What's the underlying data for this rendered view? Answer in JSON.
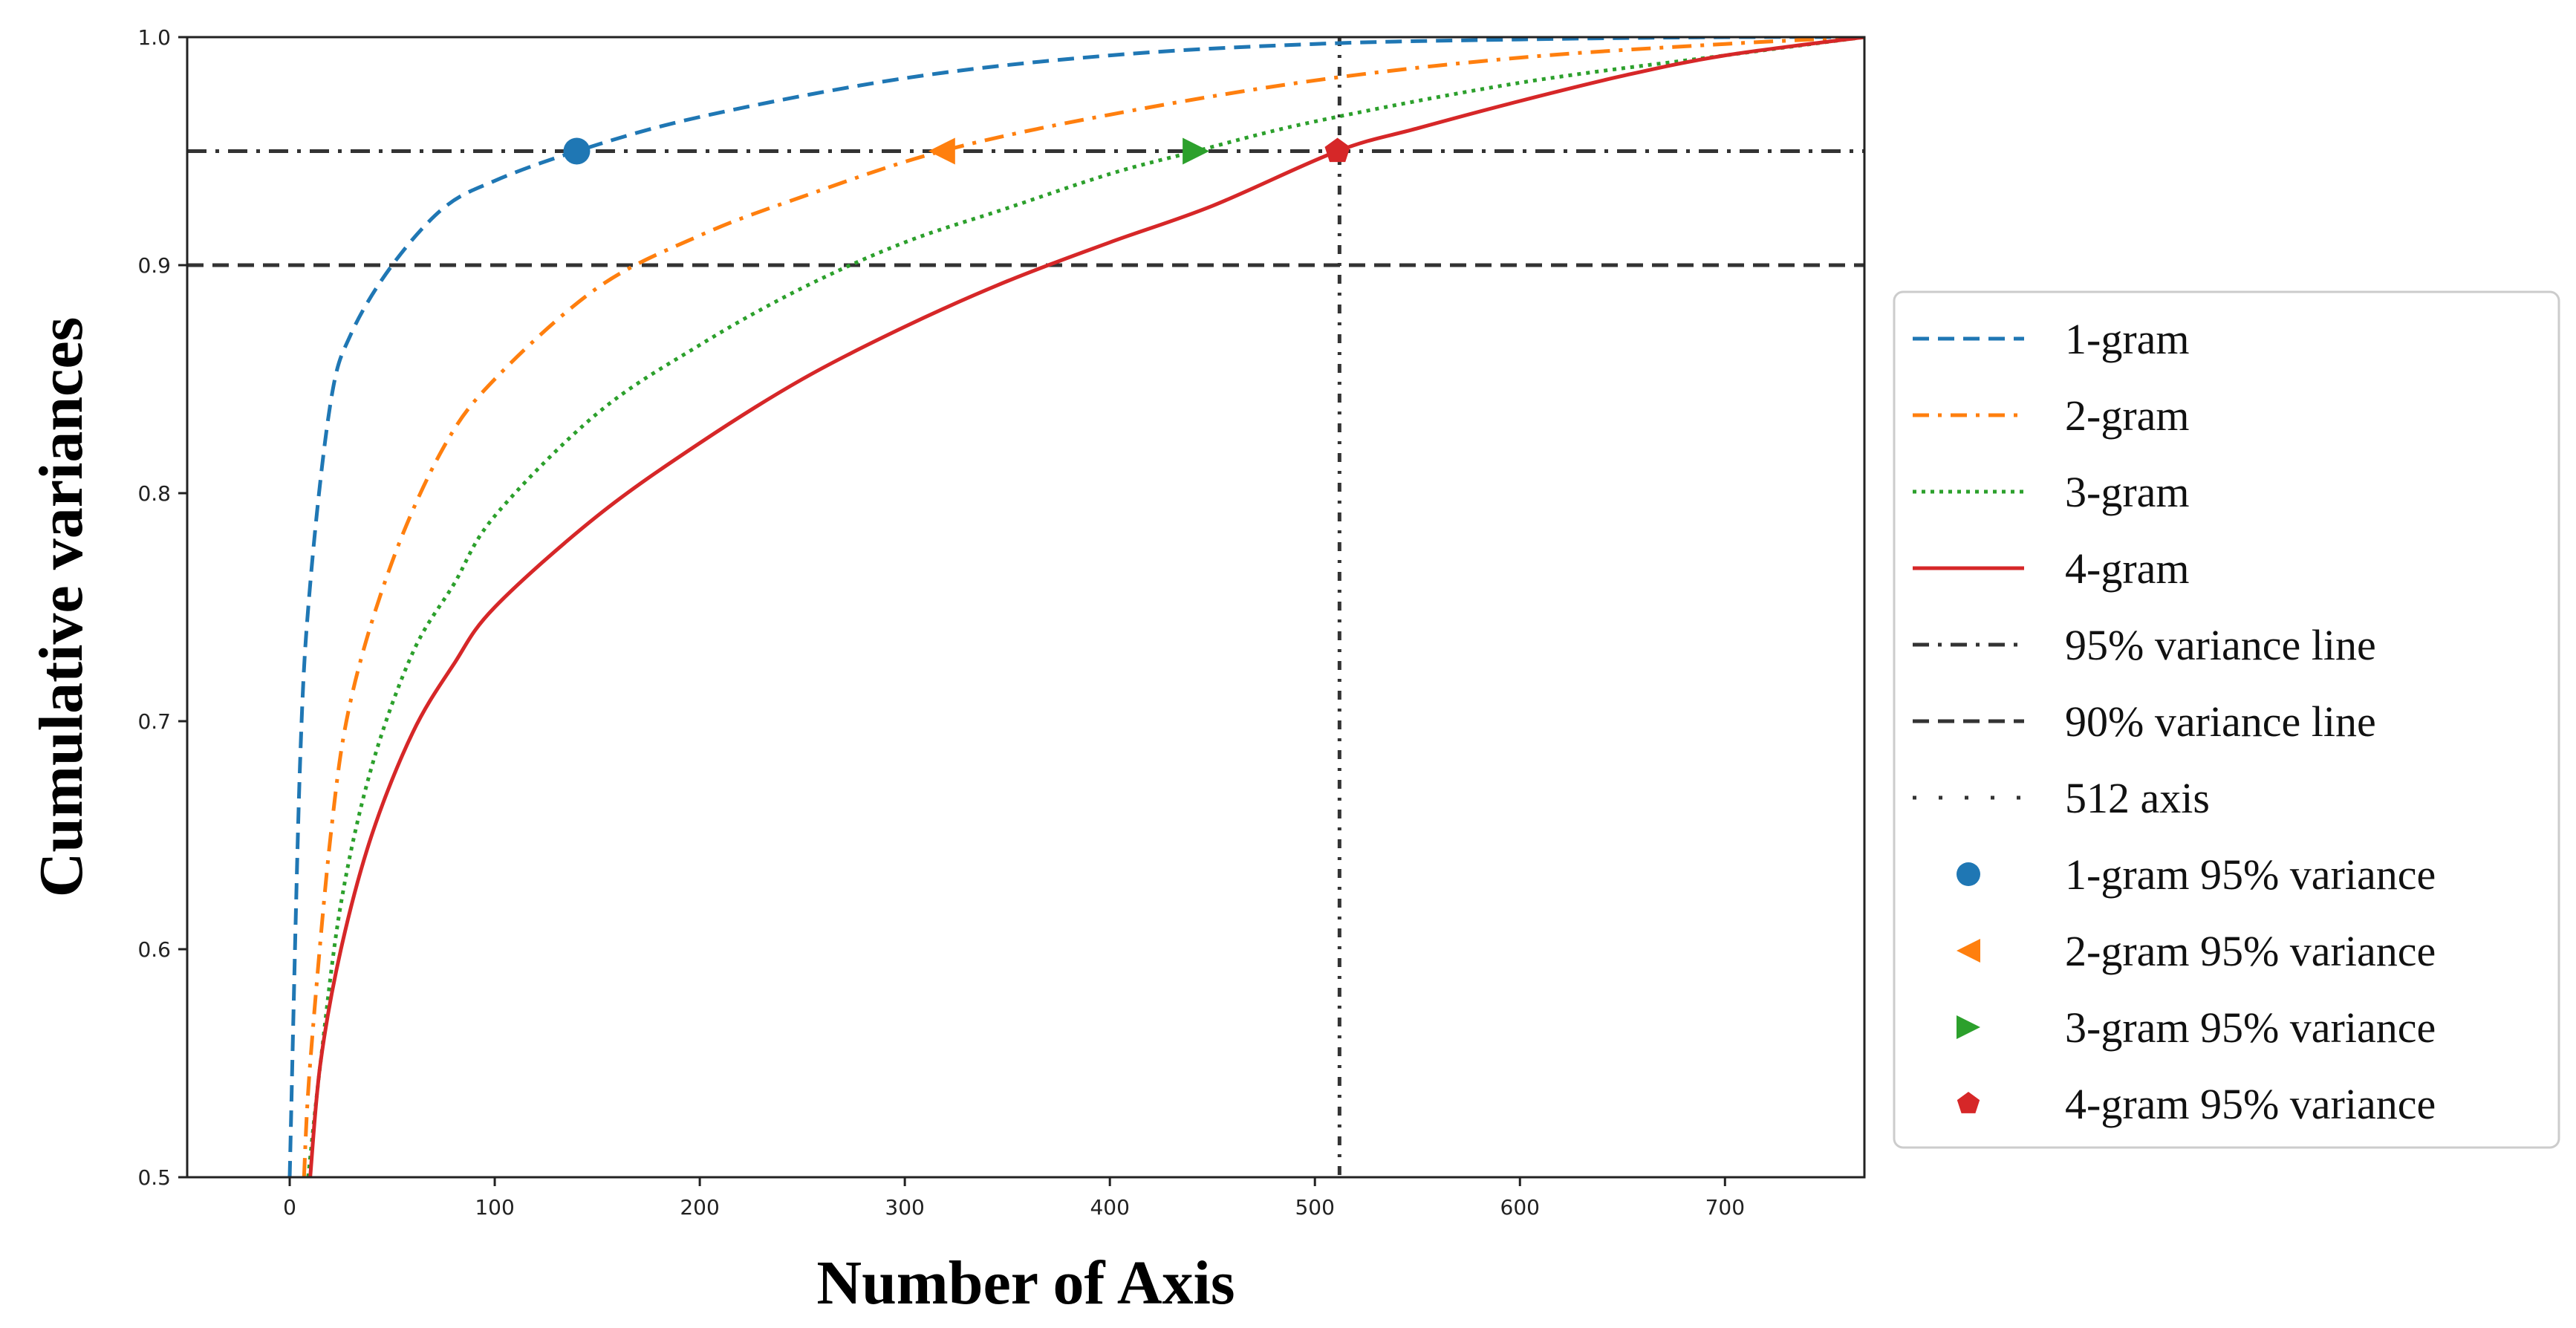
{
  "chart_data": {
    "type": "line",
    "title": "",
    "xlabel": "Number of Axis",
    "ylabel": "Cumulative variances",
    "xlim": [
      -50,
      768
    ],
    "ylim": [
      0.5,
      1.0
    ],
    "xticks": [
      0,
      100,
      200,
      300,
      400,
      500,
      600,
      700
    ],
    "yticks": [
      0.5,
      0.6,
      0.7,
      0.8,
      0.9,
      1.0
    ],
    "xtick_labels": [
      "0",
      "100",
      "200",
      "300",
      "400",
      "500",
      "600",
      "700"
    ],
    "ytick_labels": [
      "0.5",
      "0.6",
      "0.7",
      "0.8",
      "0.9",
      "1.0"
    ],
    "grid": false,
    "legend_position": "outside-right",
    "series": [
      {
        "name": "1-gram",
        "color": "#1f77b4",
        "dash": "dashed",
        "x": [
          0,
          5,
          10,
          20,
          30,
          50,
          75,
          100,
          140,
          200,
          300,
          400,
          500,
          600,
          700,
          768
        ],
        "y": [
          0.5,
          0.68,
          0.76,
          0.84,
          0.87,
          0.9,
          0.925,
          0.937,
          0.95,
          0.965,
          0.982,
          0.992,
          0.997,
          0.999,
          1.0,
          1.0
        ]
      },
      {
        "name": "2-gram",
        "color": "#ff7f0e",
        "dash": "dashdot",
        "x": [
          7,
          10,
          20,
          30,
          50,
          75,
          100,
          150,
          200,
          250,
          318,
          400,
          500,
          600,
          700,
          768
        ],
        "y": [
          0.5,
          0.55,
          0.65,
          0.71,
          0.77,
          0.82,
          0.85,
          0.89,
          0.913,
          0.93,
          0.95,
          0.966,
          0.981,
          0.991,
          0.997,
          1.0
        ]
      },
      {
        "name": "3-gram",
        "color": "#2ca02c",
        "dash": "dotted",
        "x": [
          9,
          15,
          25,
          40,
          60,
          80,
          100,
          150,
          200,
          250,
          300,
          350,
          400,
          442,
          500,
          600,
          700,
          768
        ],
        "y": [
          0.5,
          0.55,
          0.62,
          0.68,
          0.73,
          0.76,
          0.79,
          0.835,
          0.865,
          0.89,
          0.91,
          0.925,
          0.94,
          0.95,
          0.963,
          0.98,
          0.992,
          1.0
        ]
      },
      {
        "name": "4-gram",
        "color": "#d62728",
        "dash": "solid",
        "x": [
          10,
          15,
          25,
          40,
          60,
          80,
          100,
          150,
          200,
          250,
          300,
          350,
          400,
          450,
          511,
          550,
          600,
          650,
          700,
          768
        ],
        "y": [
          0.5,
          0.55,
          0.6,
          0.65,
          0.695,
          0.725,
          0.75,
          0.79,
          0.822,
          0.85,
          0.873,
          0.893,
          0.91,
          0.926,
          0.95,
          0.96,
          0.972,
          0.983,
          0.992,
          1.0
        ]
      }
    ],
    "reference_lines": [
      {
        "name": "95% variance line",
        "orientation": "horizontal",
        "value": 0.95,
        "color": "#333333",
        "dash": "dashdot"
      },
      {
        "name": "90% variance line",
        "orientation": "horizontal",
        "value": 0.9,
        "color": "#333333",
        "dash": "dashed"
      },
      {
        "name": "512 axis",
        "orientation": "vertical",
        "value": 512,
        "color": "#333333",
        "dash": "dashdot-dense"
      }
    ],
    "markers": [
      {
        "name": "1-gram 95% variance",
        "x": 140,
        "y": 0.95,
        "shape": "circle",
        "color": "#1f77b4"
      },
      {
        "name": "2-gram 95% variance",
        "x": 318,
        "y": 0.95,
        "shape": "triangle-left",
        "color": "#ff7f0e"
      },
      {
        "name": "3-gram 95% variance",
        "x": 442,
        "y": 0.95,
        "shape": "triangle-right",
        "color": "#2ca02c"
      },
      {
        "name": "4-gram 95% variance",
        "x": 511,
        "y": 0.95,
        "shape": "pentagon",
        "color": "#d62728"
      }
    ],
    "legend": [
      {
        "label": "1-gram",
        "kind": "line",
        "color": "#1f77b4",
        "dash": "dashed"
      },
      {
        "label": "2-gram",
        "kind": "line",
        "color": "#ff7f0e",
        "dash": "dashdot"
      },
      {
        "label": "3-gram",
        "kind": "line",
        "color": "#2ca02c",
        "dash": "dotted"
      },
      {
        "label": "4-gram",
        "kind": "line",
        "color": "#d62728",
        "dash": "solid"
      },
      {
        "label": "95% variance line",
        "kind": "line",
        "color": "#333333",
        "dash": "dashdot"
      },
      {
        "label": "90% variance line",
        "kind": "line",
        "color": "#333333",
        "dash": "dashed"
      },
      {
        "label": "512 axis",
        "kind": "line",
        "color": "#333333",
        "dash": "dashdot-dense"
      },
      {
        "label": "1-gram 95% variance",
        "kind": "marker",
        "color": "#1f77b4",
        "shape": "circle"
      },
      {
        "label": "2-gram 95% variance",
        "kind": "marker",
        "color": "#ff7f0e",
        "shape": "triangle-left"
      },
      {
        "label": "3-gram 95% variance",
        "kind": "marker",
        "color": "#2ca02c",
        "shape": "triangle-right"
      },
      {
        "label": "4-gram 95% variance",
        "kind": "marker",
        "color": "#d62728",
        "shape": "pentagon"
      }
    ]
  }
}
